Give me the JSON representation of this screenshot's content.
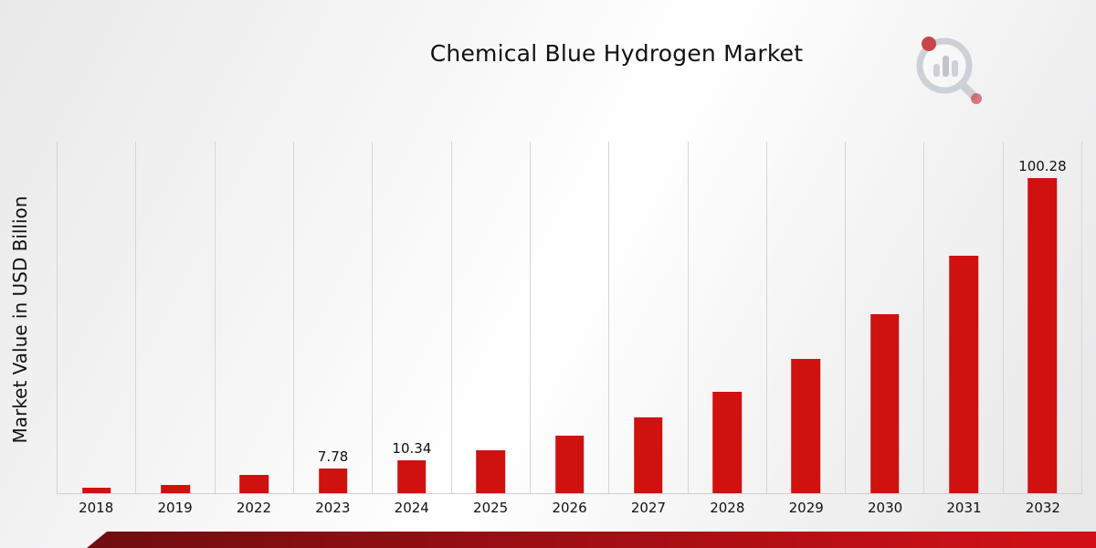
{
  "title": "Chemical Blue Hydrogen Market",
  "ylabel": "Market Value in USD Billion",
  "colors": {
    "bar": "#cf1110",
    "ribbon_dark": "#6f0d10",
    "ribbon_bright": "#d31017",
    "gridline": "#d6d6d7",
    "logo_gray": "#c7cad1",
    "logo_red": "#c2272d"
  },
  "chart_data": {
    "type": "bar",
    "title": "Chemical Blue Hydrogen Market",
    "xlabel": "",
    "ylabel": "Market Value in USD Billion",
    "ylim": [
      0,
      112
    ],
    "grid": "vertical-only",
    "legend": "none",
    "categories": [
      "2018",
      "2019",
      "2022",
      "2023",
      "2024",
      "2025",
      "2026",
      "2027",
      "2028",
      "2029",
      "2030",
      "2031",
      "2032"
    ],
    "values": [
      1.87,
      2.49,
      5.85,
      7.78,
      10.34,
      13.74,
      18.26,
      24.27,
      32.26,
      42.88,
      56.99,
      75.75,
      100.28
    ],
    "data_labels": [
      null,
      null,
      null,
      "7.78",
      "10.34",
      null,
      null,
      null,
      null,
      null,
      null,
      null,
      "100.28"
    ]
  }
}
